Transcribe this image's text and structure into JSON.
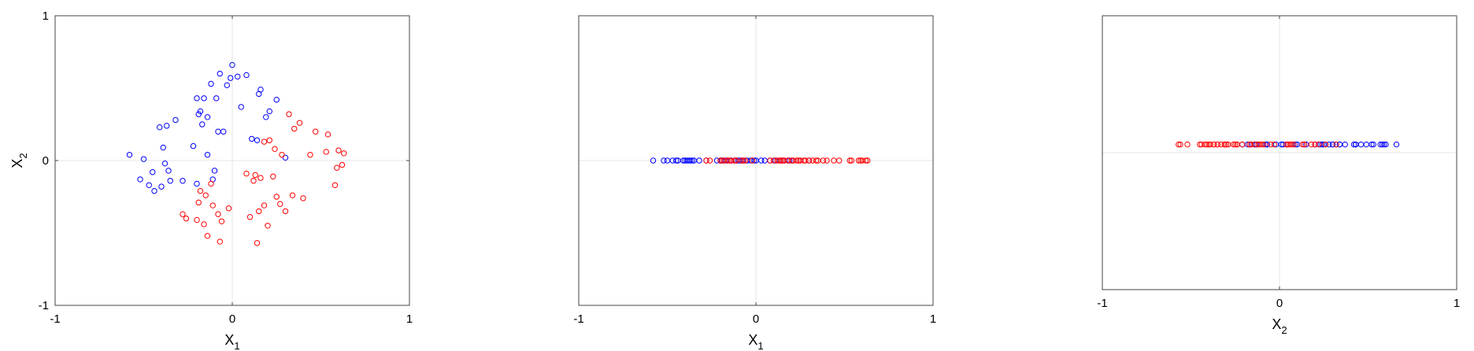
{
  "colors": {
    "class_a": "#0000ff",
    "class_b": "#ff0000",
    "frame": "#444444",
    "zero_line": "#e6e6e6"
  },
  "chart_data": [
    {
      "type": "scatter",
      "xlabel": "X",
      "xlabel_sub": "1",
      "ylabel": "X",
      "ylabel_sub": "2",
      "xlim": [
        -1,
        1
      ],
      "ylim": [
        -1,
        1
      ],
      "xticks": [
        "-1",
        "0",
        "1"
      ],
      "yticks": [
        "-1",
        "0",
        "1"
      ],
      "zero_lines": true,
      "series": [
        {
          "color": "blue",
          "x": [
            -0.58,
            -0.52,
            -0.5,
            -0.47,
            -0.45,
            -0.44,
            -0.41,
            -0.4,
            -0.39,
            -0.38,
            -0.37,
            -0.36,
            -0.35,
            -0.32,
            -0.28,
            -0.22,
            -0.2,
            -0.2,
            -0.19,
            -0.18,
            -0.17,
            -0.16,
            -0.14,
            -0.14,
            -0.12,
            -0.11,
            -0.1,
            -0.09,
            -0.08,
            -0.07,
            -0.05,
            -0.03,
            -0.01,
            0.0,
            0.03,
            0.05,
            0.08,
            0.11,
            0.14,
            0.15,
            0.16,
            0.19,
            0.21,
            0.25,
            0.3
          ],
          "y": [
            0.04,
            -0.13,
            0.01,
            -0.17,
            -0.08,
            -0.21,
            0.23,
            -0.18,
            0.09,
            -0.02,
            0.24,
            -0.07,
            -0.14,
            0.28,
            -0.14,
            0.1,
            -0.16,
            0.43,
            0.32,
            0.34,
            0.25,
            0.43,
            0.3,
            0.04,
            0.53,
            -0.13,
            -0.07,
            0.43,
            0.2,
            0.6,
            0.2,
            0.52,
            0.57,
            0.66,
            0.58,
            0.37,
            0.59,
            0.15,
            0.14,
            0.46,
            0.49,
            0.3,
            0.34,
            0.42,
            0.02
          ]
        },
        {
          "color": "red",
          "x": [
            -0.28,
            -0.26,
            -0.2,
            -0.19,
            -0.18,
            -0.16,
            -0.15,
            -0.14,
            -0.12,
            -0.11,
            -0.08,
            -0.07,
            -0.06,
            -0.02,
            0.08,
            0.1,
            0.12,
            0.13,
            0.14,
            0.15,
            0.16,
            0.18,
            0.18,
            0.2,
            0.21,
            0.23,
            0.24,
            0.25,
            0.27,
            0.28,
            0.3,
            0.32,
            0.34,
            0.35,
            0.38,
            0.4,
            0.44,
            0.47,
            0.53,
            0.54,
            0.58,
            0.59,
            0.6,
            0.62,
            0.63
          ],
          "y": [
            -0.37,
            -0.4,
            -0.41,
            -0.29,
            -0.21,
            -0.44,
            -0.24,
            -0.52,
            -0.16,
            -0.31,
            -0.37,
            -0.56,
            -0.42,
            -0.33,
            -0.09,
            -0.39,
            -0.14,
            -0.1,
            -0.57,
            -0.35,
            -0.12,
            0.13,
            -0.31,
            -0.45,
            0.14,
            -0.11,
            0.08,
            -0.25,
            -0.3,
            0.04,
            -0.35,
            0.32,
            -0.24,
            0.22,
            0.26,
            -0.26,
            0.04,
            0.2,
            0.06,
            0.18,
            -0.17,
            -0.05,
            0.07,
            -0.03,
            0.05
          ]
        }
      ]
    },
    {
      "type": "scatter",
      "xlabel": "X",
      "xlabel_sub": "1",
      "xlim": [
        -1,
        1
      ],
      "ylim": [
        -1,
        1
      ],
      "xticks": [
        "-1",
        "0",
        "1"
      ],
      "zero_lines": true,
      "series": [
        {
          "color": "blue",
          "x": [
            -0.58,
            -0.52,
            -0.5,
            -0.47,
            -0.45,
            -0.44,
            -0.41,
            -0.4,
            -0.39,
            -0.38,
            -0.37,
            -0.36,
            -0.35,
            -0.32,
            -0.28,
            -0.22,
            -0.2,
            -0.2,
            -0.19,
            -0.18,
            -0.17,
            -0.16,
            -0.14,
            -0.14,
            -0.12,
            -0.11,
            -0.1,
            -0.09,
            -0.08,
            -0.07,
            -0.05,
            -0.03,
            -0.01,
            0.0,
            0.03,
            0.05,
            0.08,
            0.11,
            0.14,
            0.15,
            0.16,
            0.19,
            0.21,
            0.25,
            0.3
          ],
          "y": [
            0,
            0,
            0,
            0,
            0,
            0,
            0,
            0,
            0,
            0,
            0,
            0,
            0,
            0,
            0,
            0,
            0,
            0,
            0,
            0,
            0,
            0,
            0,
            0,
            0,
            0,
            0,
            0,
            0,
            0,
            0,
            0,
            0,
            0,
            0,
            0,
            0,
            0,
            0,
            0,
            0,
            0,
            0,
            0,
            0
          ]
        },
        {
          "color": "red",
          "x": [
            -0.28,
            -0.26,
            -0.2,
            -0.19,
            -0.18,
            -0.16,
            -0.15,
            -0.14,
            -0.12,
            -0.11,
            -0.08,
            -0.07,
            -0.06,
            -0.02,
            0.08,
            0.1,
            0.12,
            0.13,
            0.14,
            0.15,
            0.16,
            0.18,
            0.18,
            0.2,
            0.21,
            0.23,
            0.24,
            0.25,
            0.27,
            0.28,
            0.3,
            0.32,
            0.34,
            0.35,
            0.38,
            0.4,
            0.44,
            0.47,
            0.53,
            0.54,
            0.58,
            0.59,
            0.6,
            0.62,
            0.63
          ],
          "y": [
            0,
            0,
            0,
            0,
            0,
            0,
            0,
            0,
            0,
            0,
            0,
            0,
            0,
            0,
            0,
            0,
            0,
            0,
            0,
            0,
            0,
            0,
            0,
            0,
            0,
            0,
            0,
            0,
            0,
            0,
            0,
            0,
            0,
            0,
            0,
            0,
            0,
            0,
            0,
            0,
            0,
            0,
            0,
            0,
            0
          ]
        }
      ]
    },
    {
      "type": "scatter",
      "xlabel": "X",
      "xlabel_sub": "2",
      "xlim": [
        -1,
        1
      ],
      "ylim": [
        -1,
        1
      ],
      "xticks": [
        "-1",
        "0",
        "1"
      ],
      "zero_lines": true,
      "series": [
        {
          "color": "blue",
          "x": [
            0.04,
            -0.13,
            0.01,
            -0.17,
            -0.08,
            -0.21,
            0.23,
            -0.18,
            0.09,
            -0.02,
            0.24,
            -0.07,
            -0.14,
            0.28,
            -0.14,
            0.1,
            -0.16,
            0.43,
            0.32,
            0.34,
            0.25,
            0.43,
            0.3,
            0.04,
            0.53,
            -0.13,
            -0.07,
            0.43,
            0.2,
            0.6,
            0.2,
            0.52,
            0.57,
            0.66,
            0.58,
            0.37,
            0.59,
            0.15,
            0.14,
            0.46,
            0.49,
            0.3,
            0.34,
            0.42,
            0.02
          ],
          "y": [
            0.06,
            0.06,
            0.06,
            0.06,
            0.06,
            0.06,
            0.06,
            0.06,
            0.06,
            0.06,
            0.06,
            0.06,
            0.06,
            0.06,
            0.06,
            0.06,
            0.06,
            0.06,
            0.06,
            0.06,
            0.06,
            0.06,
            0.06,
            0.06,
            0.06,
            0.06,
            0.06,
            0.06,
            0.06,
            0.06,
            0.06,
            0.06,
            0.06,
            0.06,
            0.06,
            0.06,
            0.06,
            0.06,
            0.06,
            0.06,
            0.06,
            0.06,
            0.06,
            0.06,
            0.06
          ]
        },
        {
          "color": "red",
          "x": [
            -0.37,
            -0.4,
            -0.41,
            -0.29,
            -0.21,
            -0.44,
            -0.24,
            -0.52,
            -0.16,
            -0.31,
            -0.37,
            -0.56,
            -0.42,
            -0.33,
            -0.09,
            -0.39,
            -0.14,
            -0.1,
            -0.57,
            -0.35,
            -0.12,
            0.13,
            -0.31,
            -0.45,
            0.14,
            -0.11,
            0.08,
            -0.25,
            -0.3,
            0.04,
            -0.35,
            0.32,
            -0.24,
            0.22,
            0.26,
            -0.26,
            0.04,
            0.2,
            0.06,
            0.18,
            -0.17,
            -0.05,
            0.07,
            -0.03,
            0.05
          ],
          "y": [
            0.06,
            0.06,
            0.06,
            0.06,
            0.06,
            0.06,
            0.06,
            0.06,
            0.06,
            0.06,
            0.06,
            0.06,
            0.06,
            0.06,
            0.06,
            0.06,
            0.06,
            0.06,
            0.06,
            0.06,
            0.06,
            0.06,
            0.06,
            0.06,
            0.06,
            0.06,
            0.06,
            0.06,
            0.06,
            0.06,
            0.06,
            0.06,
            0.06,
            0.06,
            0.06,
            0.06,
            0.06,
            0.06,
            0.06,
            0.06,
            0.06,
            0.06,
            0.06,
            0.06,
            0.06
          ]
        }
      ]
    }
  ]
}
